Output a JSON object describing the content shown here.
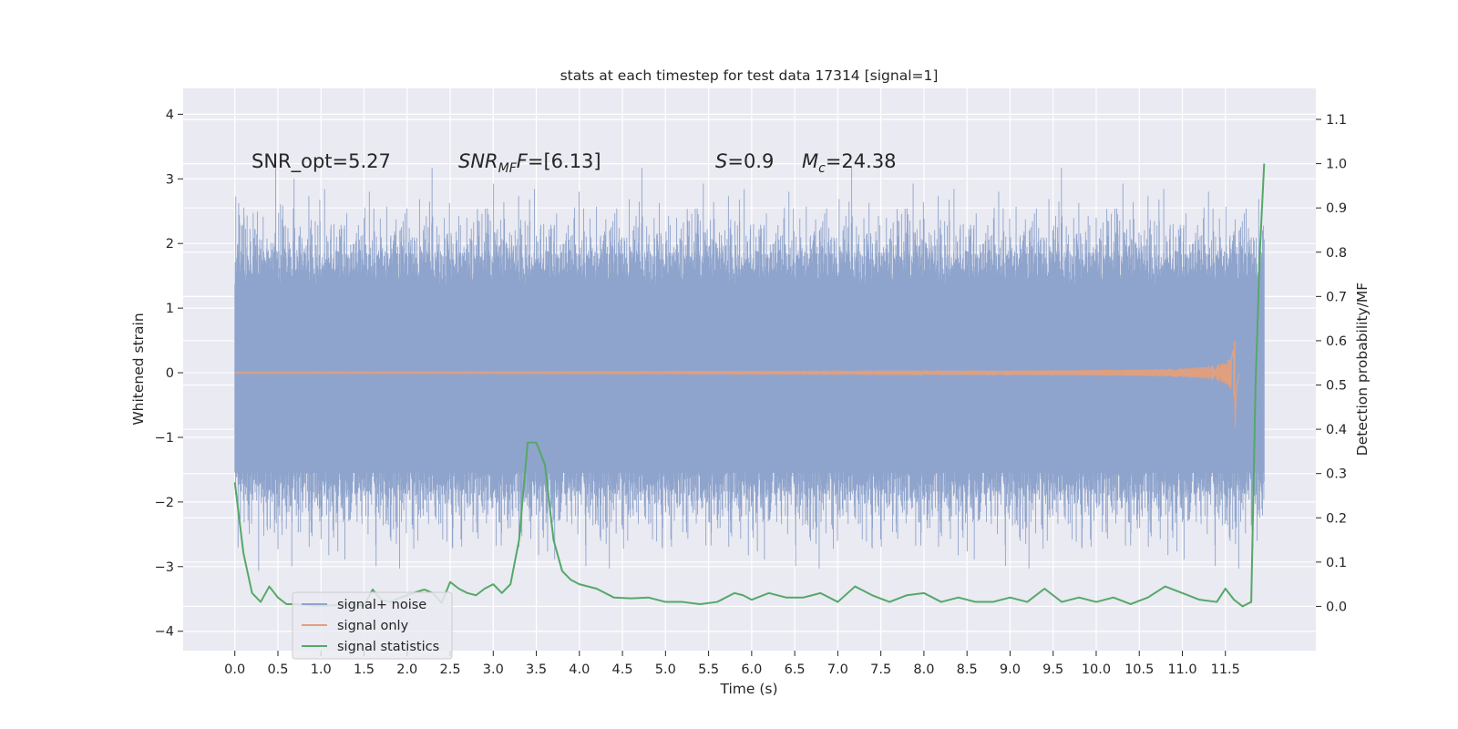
{
  "chart_data": {
    "type": "line",
    "title": "stats at each timestep for test data 17314 [signal=1]",
    "xlabel": "Time (s)",
    "ylabel": "Whitened strain",
    "y2label": "Detection probability/MF",
    "xlim": [
      -0.6,
      12.55
    ],
    "ylim": [
      -4.3,
      4.4
    ],
    "y2lim": [
      -0.1,
      1.17
    ],
    "xticks": [
      "0.0",
      "0.5",
      "1.0",
      "1.5",
      "2.0",
      "2.5",
      "3.0",
      "3.5",
      "4.0",
      "4.5",
      "5.0",
      "5.5",
      "6.0",
      "6.5",
      "7.0",
      "7.5",
      "8.0",
      "8.5",
      "9.0",
      "9.5",
      "10.0",
      "10.5",
      "11.0",
      "11.5"
    ],
    "yticks": [
      "4",
      "3",
      "2",
      "1",
      "0",
      "−1",
      "−2",
      "−3",
      "−4"
    ],
    "y2ticks": [
      "1.1",
      "1.0",
      "0.9",
      "0.8",
      "0.7",
      "0.6",
      "0.5",
      "0.4",
      "0.3",
      "0.2",
      "0.1",
      "0.0"
    ],
    "grid": true,
    "legend_position": "lower-left",
    "colors": {
      "background": "#eaeaf2",
      "grid": "#ffffff",
      "signal_noise": "#8fa4cc",
      "signal_only": "#e0a080",
      "statistics": "#55a868",
      "text": "#262626"
    },
    "annotations": [
      {
        "label": "SNR_opt",
        "value": "=5.27"
      },
      {
        "label": "SNR",
        "sub": "MF",
        "value": "=[6.13]"
      },
      {
        "label": "S",
        "value": "=0.9"
      },
      {
        "label": "M",
        "sub": "c",
        "value": "=24.38"
      }
    ],
    "series": [
      {
        "name": "signal+ noise",
        "kind": "noise-band",
        "x_range": [
          0.0,
          11.95
        ],
        "core_amplitude": 1.8,
        "peak_max": 4.1,
        "peak_min": -3.9
      },
      {
        "name": "signal only",
        "kind": "chirp",
        "x_range": [
          0.0,
          11.67
        ],
        "peak_time": 11.62,
        "peak_amplitude": 1.1
      },
      {
        "name": "signal statistics",
        "kind": "line",
        "axis": "right",
        "x": [
          0.0,
          0.1,
          0.2,
          0.3,
          0.4,
          0.5,
          0.6,
          0.7,
          0.8,
          0.9,
          1.0,
          1.1,
          1.2,
          1.3,
          1.4,
          1.5,
          1.6,
          1.7,
          1.8,
          1.9,
          2.0,
          2.1,
          2.2,
          2.3,
          2.4,
          2.5,
          2.6,
          2.7,
          2.8,
          2.9,
          3.0,
          3.1,
          3.2,
          3.3,
          3.4,
          3.5,
          3.6,
          3.7,
          3.8,
          3.9,
          4.0,
          4.2,
          4.4,
          4.6,
          4.8,
          5.0,
          5.2,
          5.4,
          5.6,
          5.8,
          5.9,
          6.0,
          6.2,
          6.4,
          6.6,
          6.8,
          7.0,
          7.2,
          7.3,
          7.4,
          7.6,
          7.8,
          8.0,
          8.2,
          8.4,
          8.6,
          8.8,
          9.0,
          9.2,
          9.4,
          9.6,
          9.8,
          10.0,
          10.2,
          10.4,
          10.6,
          10.8,
          11.0,
          11.2,
          11.4,
          11.5,
          11.6,
          11.7,
          11.8,
          11.85,
          11.9,
          11.95
        ],
        "y": [
          0.28,
          0.12,
          0.03,
          0.01,
          0.045,
          0.02,
          0.005,
          0.005,
          0.004,
          0.002,
          0.002,
          0.002,
          0.003,
          0.005,
          0.003,
          0.002,
          0.038,
          0.015,
          0.01,
          0.018,
          0.025,
          0.032,
          0.038,
          0.03,
          0.008,
          0.055,
          0.04,
          0.03,
          0.025,
          0.04,
          0.05,
          0.03,
          0.05,
          0.15,
          0.37,
          0.37,
          0.32,
          0.15,
          0.08,
          0.06,
          0.05,
          0.04,
          0.02,
          0.018,
          0.02,
          0.01,
          0.01,
          0.005,
          0.01,
          0.03,
          0.025,
          0.015,
          0.03,
          0.02,
          0.02,
          0.03,
          0.01,
          0.045,
          0.035,
          0.025,
          0.01,
          0.025,
          0.03,
          0.01,
          0.02,
          0.01,
          0.01,
          0.02,
          0.01,
          0.04,
          0.01,
          0.02,
          0.01,
          0.02,
          0.005,
          0.02,
          0.045,
          0.03,
          0.015,
          0.01,
          0.04,
          0.015,
          0.0,
          0.01,
          0.5,
          0.8,
          1.0
        ]
      }
    ]
  }
}
